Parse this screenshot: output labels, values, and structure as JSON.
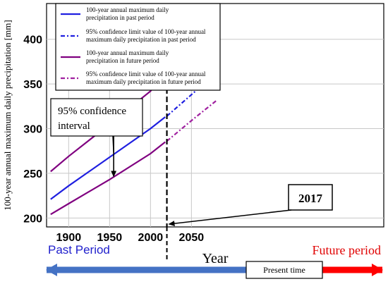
{
  "chart_data": {
    "type": "line",
    "xlabel": "Year",
    "ylabel": "100-year  annual maximum daily precipitation [mm]",
    "xlim": [
      1873,
      2285
    ],
    "ylim": [
      190,
      440
    ],
    "x_ticks": [
      1900,
      1950,
      2000,
      2050
    ],
    "y_ticks": [
      200,
      250,
      300,
      350,
      400
    ],
    "series": [
      {
        "name": "100-year annual maximum daily precipitation in past period",
        "style": "solid",
        "color": "#1f1fe0",
        "x": [
          1878,
          1900,
          1950,
          2000,
          2018
        ],
        "y": [
          221,
          236,
          268,
          300,
          313
        ]
      },
      {
        "name": "95% confidence limit value of 100-year annual maximum daily precipitation in past period",
        "style": "dotted",
        "color": "#1f1fe0",
        "x": [
          2020,
          2050,
          2080
        ],
        "y": [
          314,
          338,
          362
        ]
      },
      {
        "name": "100-year annual maximum daily precipitation in future period",
        "style": "solid",
        "color": "#800080",
        "x": [
          1878,
          1900,
          1950,
          2000,
          2018
        ],
        "y": [
          252,
          269,
          305,
          342,
          362
        ]
      },
      {
        "name": "95% confidence limit value of 100-year annual maximum daily precipitation in future period",
        "style": "dotted",
        "color": "#a020a0",
        "x": [
          2020,
          2050,
          2080
        ],
        "y": [
          363,
          393,
          423
        ]
      },
      {
        "name": "",
        "style": "solid",
        "color": "#800080",
        "x": [
          1878,
          1900,
          1950,
          2000,
          2018
        ],
        "y": [
          204,
          216,
          243,
          272,
          285
        ]
      },
      {
        "name": "",
        "style": "dotted",
        "color": "#a020a0",
        "x": [
          2020,
          2050,
          2080
        ],
        "y": [
          286,
          309,
          331
        ]
      }
    ],
    "present_year_x": 2020,
    "ci_arrow": {
      "x": 1955,
      "y_top": 306,
      "y_bottom": 245
    },
    "annotations": {
      "confidence_interval": [
        "95% confidence",
        "interval"
      ],
      "year_box": "2017",
      "past_period": "Past Period",
      "future_period": "Future period",
      "present_time": "Present time"
    },
    "colors": {
      "past_arrow": "#4472c4",
      "future_arrow": "#ff0000",
      "past_text": "#1f1fcc",
      "future_text": "#e00000"
    },
    "legend": {
      "placement": "top-left"
    }
  }
}
